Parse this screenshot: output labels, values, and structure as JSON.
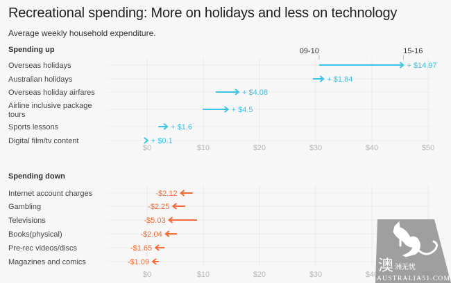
{
  "header": {
    "title": "Recreational spending: More on holidays and less on technology",
    "subtitle": "Average weekly household expenditure."
  },
  "watermark": {
    "chinese": "澳洲无忧",
    "big_char": "澳",
    "small_chars": "洲无忧",
    "site": "AUSTRALIA51.COM"
  },
  "chart_data": {
    "type": "arrow",
    "title": "Recreational spending: More on holidays and less on technology",
    "subtitle": "Average weekly household expenditure.",
    "xlabel": "",
    "ylabel": "",
    "xlim": [
      0,
      52
    ],
    "x_ticks": [
      0,
      10,
      20,
      30,
      40,
      50
    ],
    "x_tick_labels": [
      "$0",
      "$10",
      "$20",
      "$30",
      "$40",
      "$50"
    ],
    "grid": true,
    "legend": {
      "from": "09-10",
      "to": "15-16",
      "placement": "top-right above first arrow"
    },
    "colors": {
      "up": "#3dc3e6",
      "down": "#f26b38"
    },
    "sections": [
      {
        "name": "Spending up",
        "items": [
          {
            "label": "Overseas holidays",
            "from": 30.6,
            "to": 45.6,
            "change_label": "+ $14.97"
          },
          {
            "label": "Australian holidays",
            "from": 29.5,
            "to": 31.4,
            "change_label": "+ $1.84"
          },
          {
            "label": "Overseas holiday airfares",
            "from": 12.2,
            "to": 16.3,
            "change_label": "+ $4.08"
          },
          {
            "label": "Airline inclusive package tours",
            "label_lines": [
              "Airline inclusive package",
              "tours"
            ],
            "from": 9.9,
            "to": 14.4,
            "change_label": "+ $4.5"
          },
          {
            "label": "Sports lessons",
            "from": 2.0,
            "to": 3.6,
            "change_label": "+ $1.6"
          },
          {
            "label": "Digital film/tv content",
            "from": 0.0,
            "to": 0.1,
            "change_label": "+ $0.1"
          }
        ]
      },
      {
        "name": "Spending down",
        "items": [
          {
            "label": "Internet account charges",
            "from": 8.1,
            "to": 6.0,
            "change_label": "-$2.12"
          },
          {
            "label": "Gambling",
            "from": 6.8,
            "to": 4.6,
            "change_label": "-$2.25"
          },
          {
            "label": "Televisions",
            "from": 8.9,
            "to": 3.9,
            "change_label": "-$5.03"
          },
          {
            "label": "Books(physical)",
            "from": 5.3,
            "to": 3.3,
            "change_label": "-$2.04"
          },
          {
            "label": "Pre-rec videos/discs",
            "from": 3.1,
            "to": 1.5,
            "change_label": "-$1.65"
          },
          {
            "label": "Magazines and comics",
            "from": 2.1,
            "to": 1.0,
            "change_label": "-$1.09"
          }
        ]
      }
    ]
  }
}
